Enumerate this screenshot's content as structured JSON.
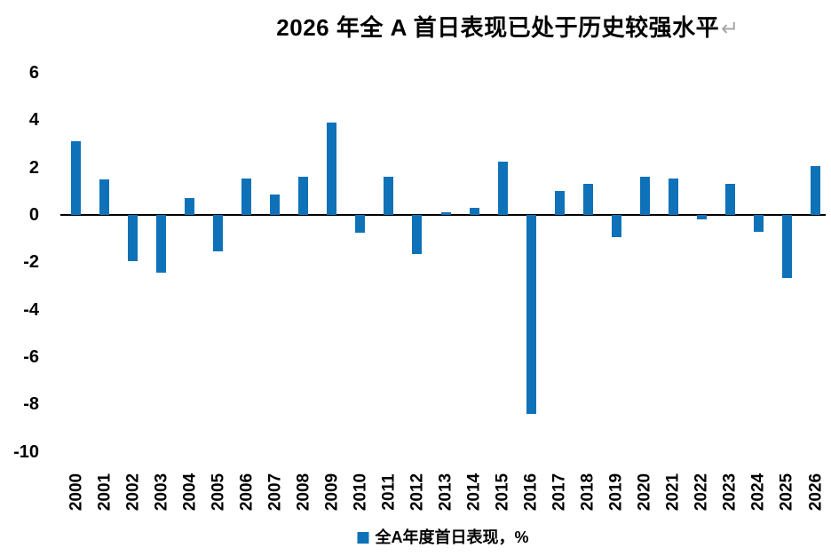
{
  "title": {
    "text": "2026 年全 A 首日表现已处于历史较强水平",
    "paragraph_mark": "↵"
  },
  "legend": {
    "label": "全A年度首日表现，%"
  },
  "colors": {
    "bar": "#0F72B8",
    "axis": "#000000",
    "text": "#000000",
    "background": "#FFFFFF",
    "paragraph_mark": "#A6A6A6"
  },
  "chart_data": {
    "type": "bar",
    "title": "2026 年全 A 首日表现已处于历史较强水平",
    "categories": [
      "2000",
      "2001",
      "2002",
      "2003",
      "2004",
      "2005",
      "2006",
      "2007",
      "2008",
      "2009",
      "2010",
      "2011",
      "2012",
      "2013",
      "2014",
      "2015",
      "2016",
      "2017",
      "2018",
      "2019",
      "2020",
      "2021",
      "2022",
      "2023",
      "2024",
      "2025",
      "2026"
    ],
    "values": [
      3.1,
      1.5,
      -1.95,
      -2.45,
      0.7,
      -1.55,
      1.55,
      0.85,
      1.6,
      3.9,
      -0.75,
      1.6,
      -1.65,
      0.1,
      0.3,
      2.25,
      -8.4,
      1.0,
      1.3,
      -0.95,
      1.6,
      1.55,
      -0.2,
      1.3,
      -0.7,
      -2.65,
      2.05
    ],
    "series": [
      {
        "name": "全A年度首日表现，%",
        "values": [
          3.1,
          1.5,
          -1.95,
          -2.45,
          0.7,
          -1.55,
          1.55,
          0.85,
          1.6,
          3.9,
          -0.75,
          1.6,
          -1.65,
          0.1,
          0.3,
          2.25,
          -8.4,
          1.0,
          1.3,
          -0.95,
          1.6,
          1.55,
          -0.2,
          1.3,
          -0.7,
          -2.65,
          2.05
        ]
      }
    ],
    "xlabel": "",
    "ylabel": "",
    "ylim": [
      -10,
      6
    ],
    "yticks": [
      6,
      4,
      2,
      0,
      -2,
      -4,
      -6,
      -8,
      -10
    ],
    "grid": false,
    "legend_position": "bottom",
    "bar_color": "#0F72B8"
  }
}
